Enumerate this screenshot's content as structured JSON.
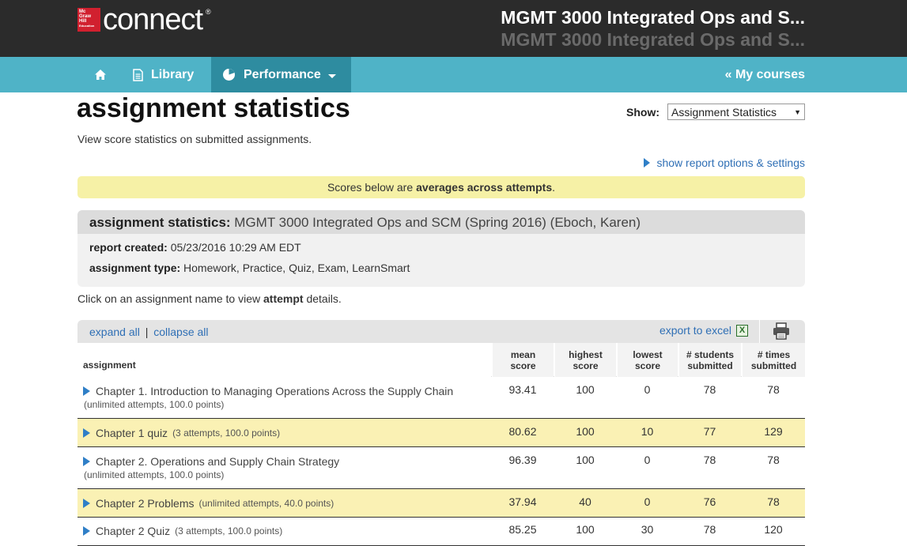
{
  "header": {
    "logo_lines": [
      "Mc",
      "Graw",
      "Hill",
      "Education"
    ],
    "logo_text": "connect",
    "logo_reg": "®",
    "course_title": "MGMT 3000 Integrated Ops and S...",
    "course_subtitle": "MGMT 3000 Integrated Ops and S..."
  },
  "nav": {
    "home_icon": "home-icon",
    "library_label": "Library",
    "performance_label": "Performance",
    "my_courses_label": "« My courses"
  },
  "page": {
    "title": "assignment statistics",
    "subtitle": "View score statistics on submitted assignments.",
    "show_label": "Show:",
    "show_value": "Assignment Statistics",
    "report_options_label": "show report options & settings",
    "notice_pre": "Scores below are",
    "notice_bold": "averages across attempts",
    "notice_post": "."
  },
  "info": {
    "head_bold": "assignment statistics:",
    "head_text": "MGMT 3000 Integrated Ops and SCM (Spring 2016) (Eboch, Karen)",
    "report_created_label": "report created:",
    "report_created_value": "05/23/2016 10:29 AM EDT",
    "assignment_type_label": "assignment type:",
    "assignment_type_value": "Homework, Practice, Quiz, Exam, LearnSmart"
  },
  "click_note": {
    "pre": "Click on an assignment name to view",
    "bold": "attempt",
    "post": "details."
  },
  "toolbar": {
    "expand_all": "expand all",
    "separator": "|",
    "collapse_all": "collapse all",
    "export_label": "export to excel",
    "excel_glyph": "X"
  },
  "table": {
    "headers": {
      "assignment": "assignment",
      "mean": [
        "mean",
        "score"
      ],
      "highest": [
        "highest",
        "score"
      ],
      "lowest": [
        "lowest",
        "score"
      ],
      "students": [
        "# students",
        "submitted"
      ],
      "times": [
        "# times",
        "submitted"
      ]
    },
    "rows": [
      {
        "name": "Chapter 1. Introduction to Managing Operations Across the Supply Chain",
        "meta": "(unlimited attempts, 100.0 points)",
        "mean": "93.41",
        "highest": "100",
        "lowest": "0",
        "students": "78",
        "times": "78"
      },
      {
        "name": "Chapter 1 quiz",
        "meta": "(3 attempts, 100.0 points)",
        "mean": "80.62",
        "highest": "100",
        "lowest": "10",
        "students": "77",
        "times": "129"
      },
      {
        "name": "Chapter 2. Operations and Supply Chain Strategy",
        "meta": "(unlimited attempts, 100.0 points)",
        "mean": "96.39",
        "highest": "100",
        "lowest": "0",
        "students": "78",
        "times": "78"
      },
      {
        "name": "Chapter 2 Problems",
        "meta": "(unlimited attempts, 40.0 points)",
        "mean": "37.94",
        "highest": "40",
        "lowest": "0",
        "students": "76",
        "times": "78"
      },
      {
        "name": "Chapter 2 Quiz",
        "meta": "(3 attempts, 100.0 points)",
        "mean": "85.25",
        "highest": "100",
        "lowest": "30",
        "students": "78",
        "times": "120"
      }
    ]
  }
}
